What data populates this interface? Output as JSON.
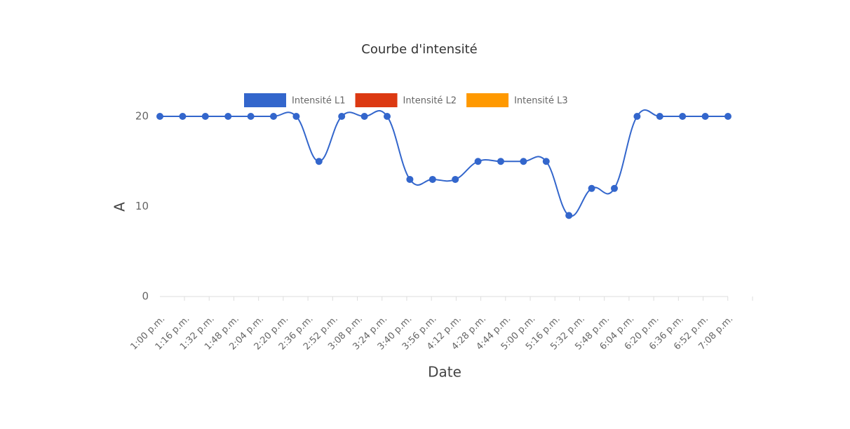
{
  "chart_data": {
    "type": "line",
    "title": "Courbe d'intensité",
    "xlabel": "Date",
    "ylabel": "A",
    "categories": [
      "1:00 p.m.",
      "1:16 p.m.",
      "1:32 p.m.",
      "1:48 p.m.",
      "2:04 p.m.",
      "2:20 p.m.",
      "2:36 p.m.",
      "2:52 p.m.",
      "3:08 p.m.",
      "3:24 p.m.",
      "3:40 p.m.",
      "3:56 p.m.",
      "4:12 p.m.",
      "4:28 p.m.",
      "4:44 p.m.",
      "5:00 p.m.",
      "5:16 p.m.",
      "5:32 p.m.",
      "5:48 p.m.",
      "6:04 p.m.",
      "6:20 p.m.",
      "6:36 p.m.",
      "6:52 p.m.",
      "7:08 p.m.",
      null,
      null
    ],
    "series": [
      {
        "name": "Intensité L1",
        "color": "#3366cc",
        "values": [
          20,
          20,
          20,
          20,
          20,
          20,
          20,
          15,
          20,
          20,
          20,
          13,
          13,
          13,
          15,
          15,
          15,
          15,
          9,
          12,
          12,
          20,
          20,
          20,
          20,
          20
        ]
      },
      {
        "name": "Intensité L2",
        "color": "#dc3912",
        "values": [
          null,
          null,
          null,
          null,
          null,
          null,
          null,
          null,
          null,
          null,
          null,
          null,
          null,
          null,
          null,
          null,
          null,
          null,
          null,
          null,
          null,
          null,
          null,
          null,
          null,
          null
        ]
      },
      {
        "name": "Intensité L3",
        "color": "#ff9900",
        "values": [
          null,
          null,
          null,
          null,
          null,
          null,
          null,
          null,
          null,
          null,
          null,
          null,
          null,
          null,
          null,
          null,
          null,
          null,
          null,
          null,
          null,
          null,
          null,
          null,
          null,
          null
        ]
      }
    ],
    "ylim": [
      0,
      20
    ],
    "yticks": [
      0,
      10,
      20
    ],
    "legend": "top"
  }
}
